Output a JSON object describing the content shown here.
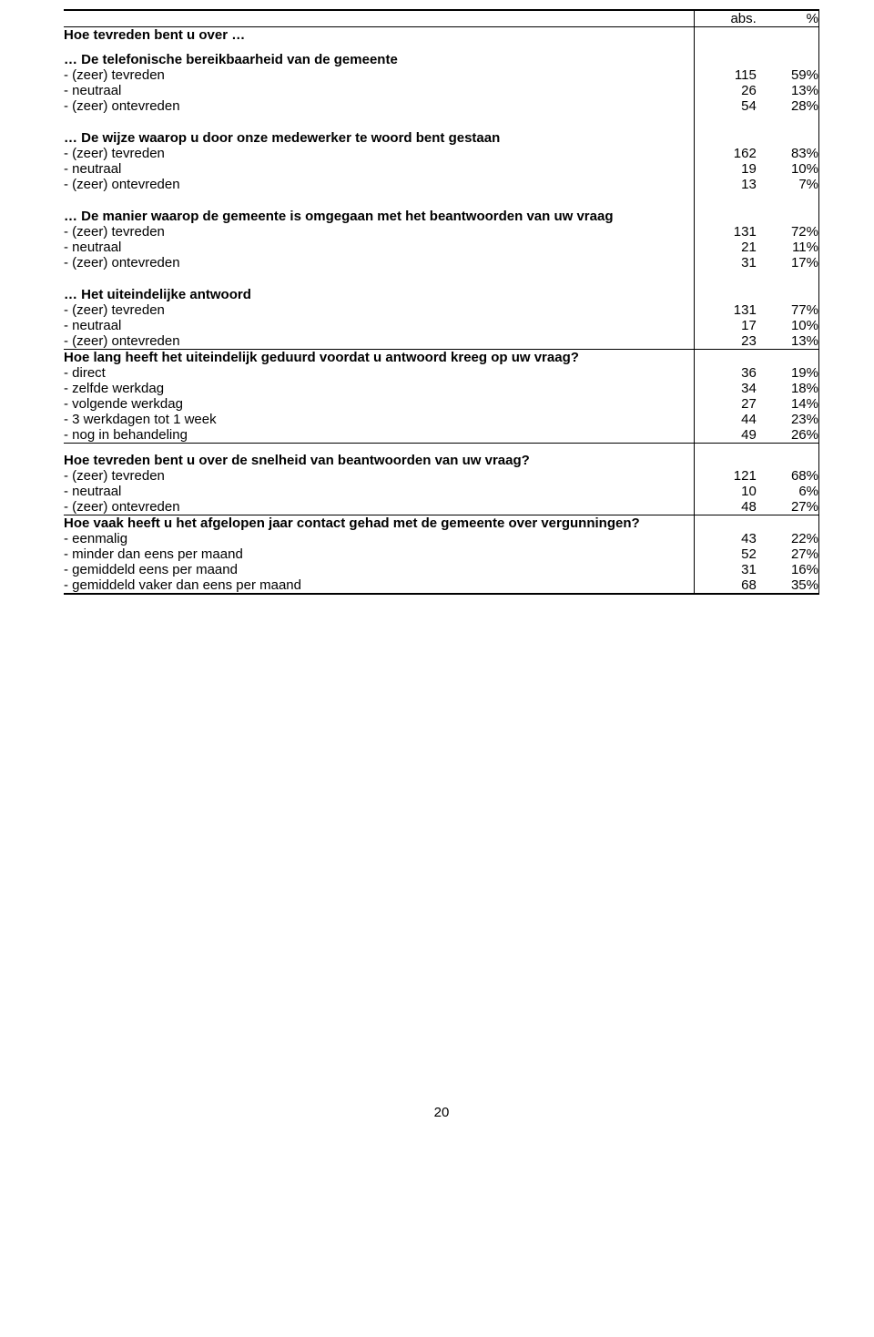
{
  "header": {
    "abs": "abs.",
    "pct": "%"
  },
  "page_number": "20",
  "sections": [
    {
      "question": "Hoe tevreden bent u over …",
      "groups": [
        {
          "lead": "… De telefonische bereikbaarheid van de gemeente",
          "rows": [
            {
              "label": "- (zeer) tevreden",
              "abs": "115",
              "pct": "59%"
            },
            {
              "label": "- neutraal",
              "abs": "26",
              "pct": "13%"
            },
            {
              "label": "- (zeer) ontevreden",
              "abs": "54",
              "pct": "28%"
            }
          ]
        },
        {
          "lead": "… De wijze waarop u door onze medewerker te woord bent gestaan",
          "rows": [
            {
              "label": "- (zeer) tevreden",
              "abs": "162",
              "pct": "83%"
            },
            {
              "label": "- neutraal",
              "abs": "19",
              "pct": "10%"
            },
            {
              "label": "- (zeer) ontevreden",
              "abs": "13",
              "pct": "7%"
            }
          ]
        },
        {
          "lead": "… De manier waarop de gemeente is omgegaan met het beantwoorden van uw vraag",
          "rows": [
            {
              "label": "- (zeer) tevreden",
              "abs": "131",
              "pct": "72%"
            },
            {
              "label": "- neutraal",
              "abs": "21",
              "pct": "11%"
            },
            {
              "label": "- (zeer) ontevreden",
              "abs": "31",
              "pct": "17%"
            }
          ]
        },
        {
          "lead": "… Het uiteindelijke antwoord",
          "rows": [
            {
              "label": "- (zeer) tevreden",
              "abs": "131",
              "pct": "77%"
            },
            {
              "label": "- neutraal",
              "abs": "17",
              "pct": "10%"
            },
            {
              "label": "- (zeer) ontevreden",
              "abs": "23",
              "pct": "13%"
            }
          ]
        }
      ]
    },
    {
      "question": "Hoe lang heeft het uiteindelijk geduurd voordat u antwoord kreeg op uw vraag?",
      "rows": [
        {
          "label": "- direct",
          "abs": "36",
          "pct": "19%"
        },
        {
          "label": "- zelfde werkdag",
          "abs": "34",
          "pct": "18%"
        },
        {
          "label": "- volgende werkdag",
          "abs": "27",
          "pct": "14%"
        },
        {
          "label": "- 3 werkdagen tot 1 week",
          "abs": "44",
          "pct": "23%"
        },
        {
          "label": "- nog in behandeling",
          "abs": "49",
          "pct": "26%"
        }
      ]
    },
    {
      "question": "Hoe tevreden bent u over de snelheid van beantwoorden van uw vraag?",
      "rows": [
        {
          "label": "- (zeer) tevreden",
          "abs": "121",
          "pct": "68%"
        },
        {
          "label": "- neutraal",
          "abs": "10",
          "pct": "6%"
        },
        {
          "label": "- (zeer) ontevreden",
          "abs": "48",
          "pct": "27%"
        }
      ]
    },
    {
      "question": "Hoe vaak heeft u het afgelopen jaar contact gehad met de gemeente over vergunningen?",
      "rows": [
        {
          "label": "- eenmalig",
          "abs": "43",
          "pct": "22%"
        },
        {
          "label": "- minder dan eens per maand",
          "abs": "52",
          "pct": "27%"
        },
        {
          "label": "- gemiddeld eens per maand",
          "abs": "31",
          "pct": "16%"
        },
        {
          "label": "- gemiddeld vaker dan eens per maand",
          "abs": "68",
          "pct": "35%"
        }
      ]
    }
  ]
}
